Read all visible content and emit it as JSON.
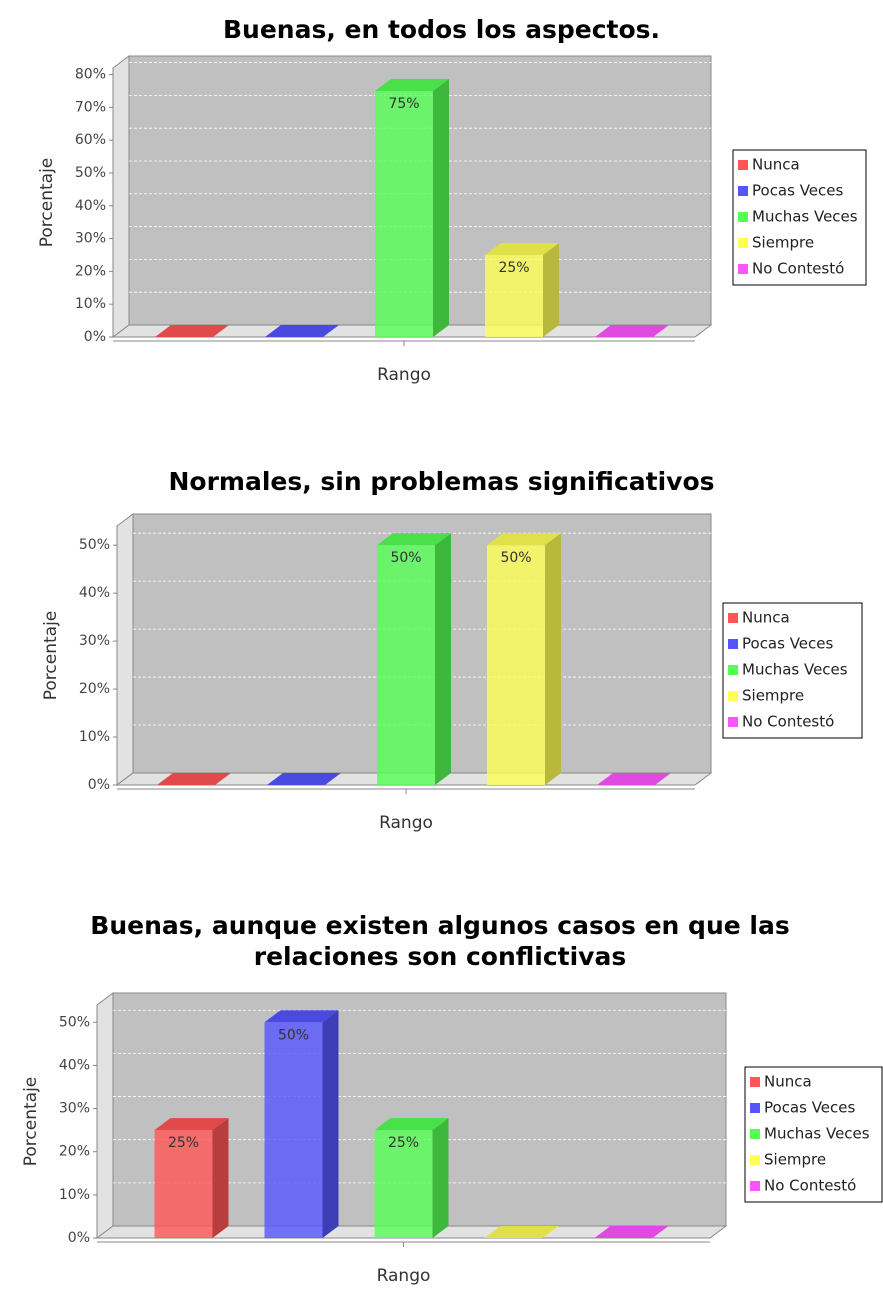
{
  "chart_data": [
    {
      "type": "bar3d",
      "title": "Buenas, en todos los aspectos.",
      "xlabel": "Rango",
      "ylabel": "Porcentaje",
      "categories": [
        null
      ],
      "series": [
        {
          "name": "Nunca",
          "color": "#ff5555",
          "values": [
            0
          ],
          "value_labels": [
            null
          ]
        },
        {
          "name": "Pocas Veces",
          "color": "#5555ff",
          "values": [
            0
          ],
          "value_labels": [
            null
          ]
        },
        {
          "name": "Muchas Veces",
          "color": "#55ff55",
          "values": [
            75
          ],
          "value_labels": [
            "75%"
          ]
        },
        {
          "name": "Siempre",
          "color": "#ffff55",
          "values": [
            25
          ],
          "value_labels": [
            "25%"
          ]
        },
        {
          "name": "No Contestó",
          "color": "#ff55ff",
          "values": [
            0
          ],
          "value_labels": [
            null
          ]
        }
      ],
      "ylim": [
        0,
        82
      ],
      "yticks": [
        {
          "value": 0,
          "label": "0%"
        },
        {
          "value": 10,
          "label": "10%"
        },
        {
          "value": 20,
          "label": "20%"
        },
        {
          "value": 30,
          "label": "30%"
        },
        {
          "value": 40,
          "label": "40%"
        },
        {
          "value": 50,
          "label": "50%"
        },
        {
          "value": 60,
          "label": "60%"
        },
        {
          "value": 70,
          "label": "70%"
        },
        {
          "value": 80,
          "label": "80%"
        }
      ],
      "grid": true,
      "legend": "right"
    },
    {
      "type": "bar3d",
      "title": "Normales, sin problemas significativos",
      "xlabel": "Rango",
      "ylabel": "Porcentaje",
      "categories": [
        null
      ],
      "series": [
        {
          "name": "Nunca",
          "color": "#ff5555",
          "values": [
            0
          ],
          "value_labels": [
            null
          ]
        },
        {
          "name": "Pocas Veces",
          "color": "#5555ff",
          "values": [
            0
          ],
          "value_labels": [
            null
          ]
        },
        {
          "name": "Muchas Veces",
          "color": "#55ff55",
          "values": [
            50
          ],
          "value_labels": [
            "50%"
          ]
        },
        {
          "name": "Siempre",
          "color": "#ffff55",
          "values": [
            50
          ],
          "value_labels": [
            "50%"
          ]
        },
        {
          "name": "No Contestó",
          "color": "#ff55ff",
          "values": [
            0
          ],
          "value_labels": [
            null
          ]
        }
      ],
      "ylim": [
        0,
        54
      ],
      "yticks": [
        {
          "value": 0,
          "label": "0%"
        },
        {
          "value": 10,
          "label": "10%"
        },
        {
          "value": 20,
          "label": "20%"
        },
        {
          "value": 30,
          "label": "30%"
        },
        {
          "value": 40,
          "label": "40%"
        },
        {
          "value": 50,
          "label": "50%"
        }
      ],
      "grid": true,
      "legend": "right"
    },
    {
      "type": "bar3d",
      "title": "Buenas, aunque existen algunos casos en que las relaciones son conflictivas",
      "xlabel": "Rango",
      "ylabel": "Porcentaje",
      "categories": [
        null
      ],
      "series": [
        {
          "name": "Nunca",
          "color": "#ff5555",
          "values": [
            25
          ],
          "value_labels": [
            "25%"
          ]
        },
        {
          "name": "Pocas Veces",
          "color": "#5555ff",
          "values": [
            50
          ],
          "value_labels": [
            "50%"
          ]
        },
        {
          "name": "Muchas Veces",
          "color": "#55ff55",
          "values": [
            25
          ],
          "value_labels": [
            "25%"
          ]
        },
        {
          "name": "Siempre",
          "color": "#ffff55",
          "values": [
            0
          ],
          "value_labels": [
            null
          ]
        },
        {
          "name": "No Contestó",
          "color": "#ff55ff",
          "values": [
            0
          ],
          "value_labels": [
            null
          ]
        }
      ],
      "ylim": [
        0,
        54
      ],
      "yticks": [
        {
          "value": 0,
          "label": "0%"
        },
        {
          "value": 10,
          "label": "10%"
        },
        {
          "value": 20,
          "label": "20%"
        },
        {
          "value": 30,
          "label": "30%"
        },
        {
          "value": 40,
          "label": "40%"
        },
        {
          "value": 50,
          "label": "50%"
        }
      ],
      "grid": true,
      "legend": "right"
    }
  ]
}
